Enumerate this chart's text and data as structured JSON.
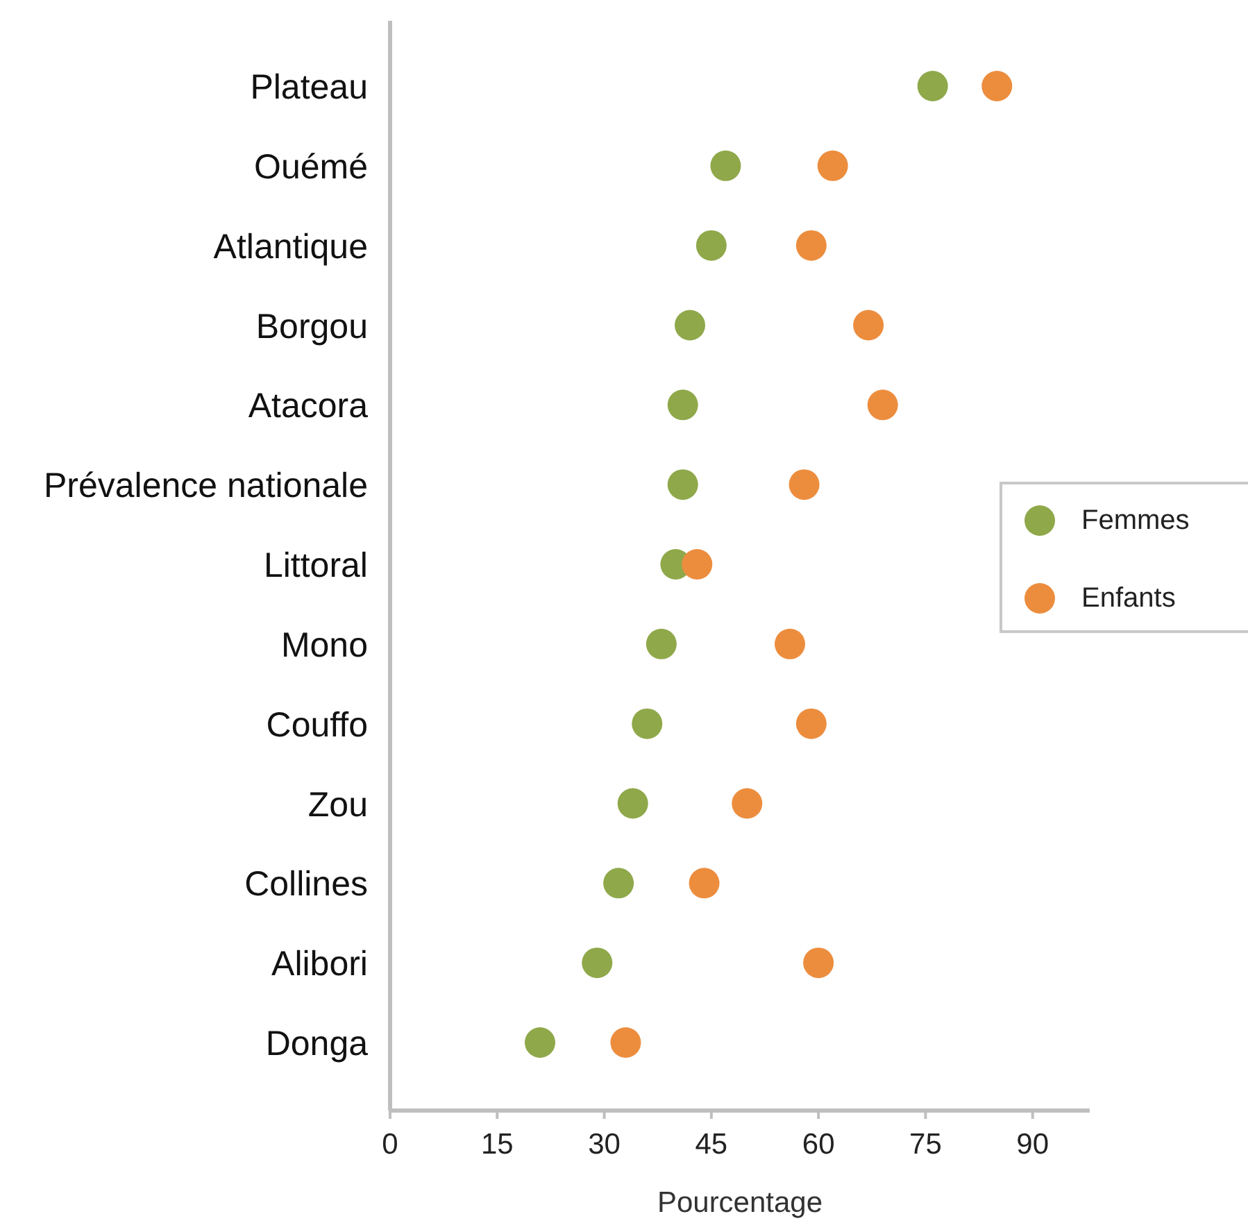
{
  "chart_data": {
    "type": "scatter",
    "xlabel": "Pourcentage",
    "categories": [
      "Plateau",
      "Ouémé",
      "Atlantique",
      "Borgou",
      "Atacora",
      "Prévalence nationale",
      "Littoral",
      "Mono",
      "Couffo",
      "Zou",
      "Collines",
      "Alibori",
      "Donga"
    ],
    "orientation": "horizontal",
    "xlim": [
      0,
      98
    ],
    "xticks": [
      0,
      15,
      30,
      45,
      60,
      75,
      90
    ],
    "series": [
      {
        "name": "Femmes",
        "color": "#8fa84a",
        "values": [
          76,
          47,
          45,
          42,
          41,
          41,
          40,
          38,
          36,
          34,
          32,
          29,
          21
        ]
      },
      {
        "name": "Enfants",
        "color": "#ec8d3e",
        "values": [
          85,
          62,
          59,
          67,
          69,
          58,
          43,
          56,
          59,
          50,
          44,
          60,
          33
        ]
      }
    ],
    "legend": "right",
    "marker": "circle",
    "grid": false
  }
}
